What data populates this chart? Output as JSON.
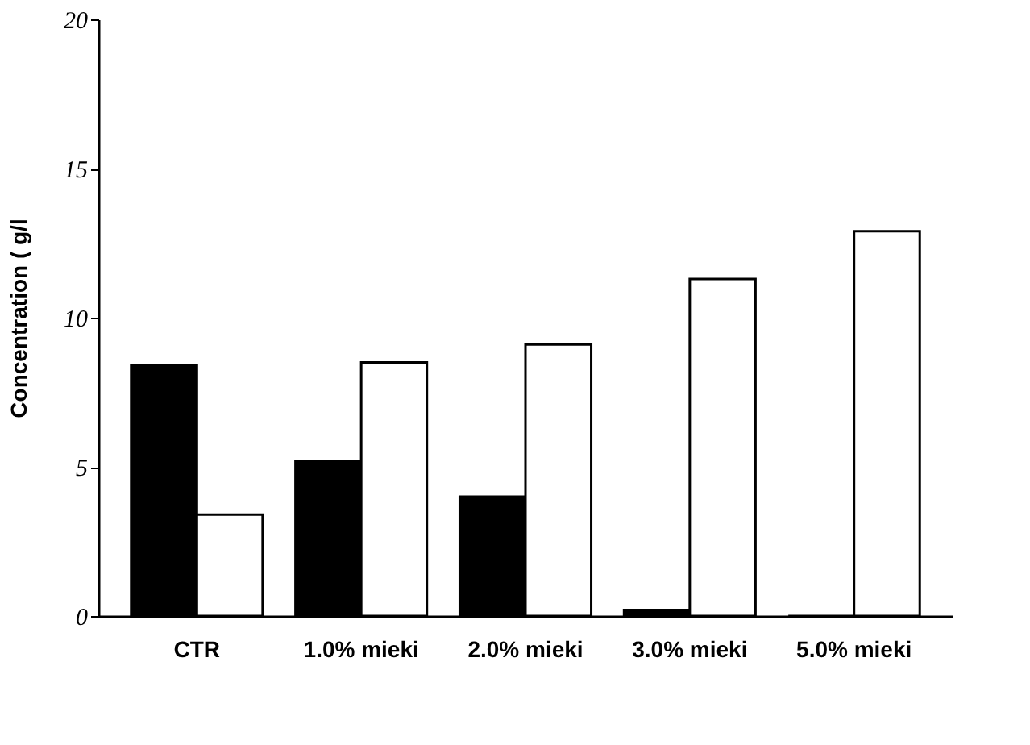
{
  "chart_data": {
    "type": "bar",
    "ylabel": "Concentration ( g/l",
    "categories": [
      "CTR",
      "1.0% mieki",
      "2.0% mieki",
      "3.0% mieki",
      "5.0% mieki"
    ],
    "series": [
      {
        "color": "#000000",
        "values": [
          8.4,
          5.2,
          4.0,
          0.2,
          0
        ]
      },
      {
        "color": "#ffffff",
        "values": [
          3.4,
          8.5,
          9.1,
          11.3,
          12.9
        ]
      }
    ],
    "ylim": [
      0,
      20
    ],
    "yticks": [
      0,
      5,
      10,
      15,
      20
    ],
    "grid": false,
    "legend": false
  }
}
